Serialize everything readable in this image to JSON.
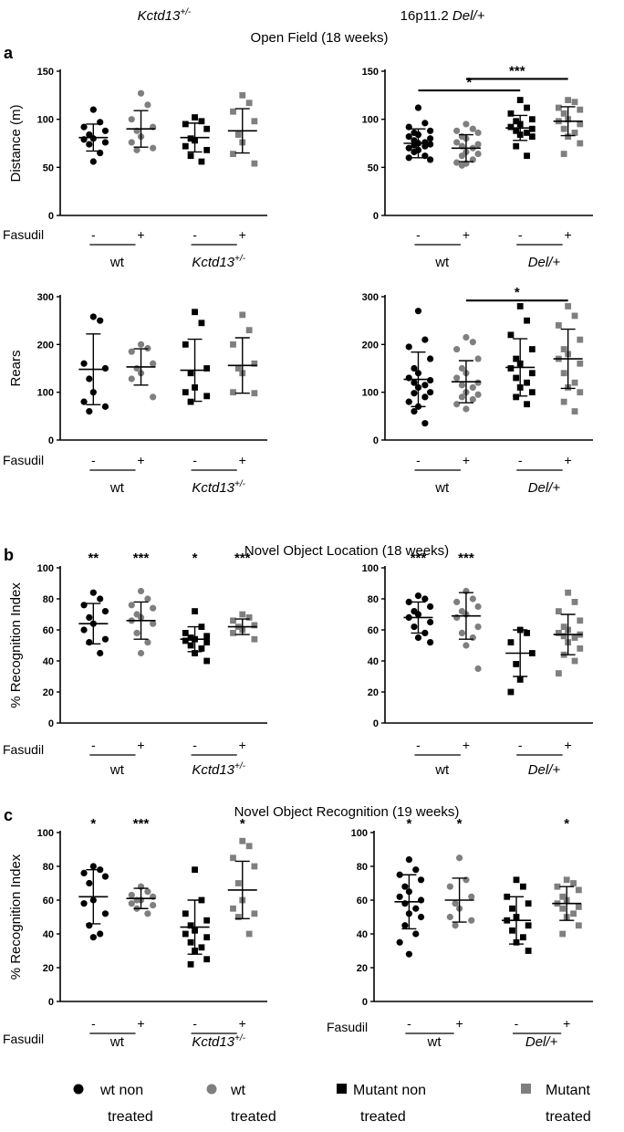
{
  "header": {
    "left_genotype": "Kctd13",
    "left_genotype_sup": "+/-",
    "right_prefix": "16p11.2",
    "right_genotype": "Del/+"
  },
  "colors": {
    "non_treated": "#000000",
    "treated": "#7f7f7f"
  },
  "legend": [
    {
      "marker": "circle",
      "color": "#000000",
      "line1": "wt non",
      "line2": "treated"
    },
    {
      "marker": "circle",
      "color": "#7f7f7f",
      "line1": "wt",
      "line2": "treated"
    },
    {
      "marker": "square",
      "color": "#000000",
      "line1": "Mutant non",
      "line2": "treated"
    },
    {
      "marker": "square",
      "color": "#7f7f7f",
      "line1": "Mutant",
      "line2": "treated"
    }
  ],
  "chart_data": [
    {
      "type": "scatter",
      "section": "a",
      "title": "Open Field (18 weeks)",
      "ylabel": "Distance (m)",
      "ylim": [
        0,
        150
      ],
      "yticks": [
        0,
        50,
        100,
        150
      ],
      "treatment_label": "Fasudil",
      "groups": [
        {
          "label": "wt",
          "italic": false
        },
        {
          "label": "Kctd13",
          "sup": "+/-",
          "italic": true
        }
      ],
      "signs": [
        "-",
        "+",
        "-",
        "+"
      ],
      "brackets": [],
      "series": [
        {
          "name": "wt non treated",
          "values": [
            110,
            97,
            92,
            88,
            84,
            80,
            79,
            76,
            74,
            65,
            56
          ],
          "mean": 81,
          "sd": 14
        },
        {
          "name": "wt treated",
          "values": [
            127,
            115,
            100,
            92,
            88,
            82,
            76,
            70,
            68
          ],
          "mean": 90,
          "sd": 19
        },
        {
          "name": "Mutant non treated",
          "values": [
            102,
            98,
            95,
            90,
            80,
            78,
            72,
            68,
            62,
            56
          ],
          "mean": 81,
          "sd": 15
        },
        {
          "name": "Mutant treated",
          "values": [
            125,
            117,
            108,
            98,
            84,
            76,
            64,
            54
          ],
          "mean": 88,
          "sd": 23
        }
      ]
    },
    {
      "type": "scatter",
      "section": "a",
      "title": "",
      "ylabel": "Distance (m)",
      "ylim": [
        0,
        150
      ],
      "yticks": [
        0,
        50,
        100,
        150
      ],
      "treatment_label": "",
      "groups": [
        {
          "label": "wt",
          "italic": false
        },
        {
          "label": "Del/+",
          "italic": true
        }
      ],
      "signs": [
        "-",
        "+",
        "-",
        "+"
      ],
      "brackets": [
        {
          "from": 0,
          "to": 2,
          "value": 130,
          "label": "*"
        },
        {
          "from": 1,
          "to": 3,
          "value": 142,
          "label": "***"
        }
      ],
      "series": [
        {
          "name": "wt non treated",
          "values": [
            112,
            96,
            92,
            88,
            86,
            84,
            82,
            80,
            78,
            76,
            75,
            74,
            73,
            72,
            70,
            68,
            66,
            62,
            60,
            58
          ],
          "mean": 75,
          "sd": 15
        },
        {
          "name": "wt treated",
          "values": [
            95,
            90,
            88,
            86,
            82,
            80,
            76,
            74,
            72,
            70,
            66,
            64,
            62,
            58,
            55,
            54,
            52
          ],
          "mean": 70,
          "sd": 14
        },
        {
          "name": "Mutant non treated",
          "values": [
            120,
            112,
            106,
            100,
            98,
            95,
            92,
            90,
            88,
            86,
            84,
            82,
            72,
            62
          ],
          "mean": 91,
          "sd": 13
        },
        {
          "name": "Mutant treated",
          "values": [
            120,
            118,
            112,
            110,
            106,
            100,
            98,
            95,
            90,
            86,
            82,
            75,
            64
          ],
          "mean": 98,
          "sd": 15
        }
      ]
    },
    {
      "type": "scatter",
      "section": "a",
      "title": "",
      "ylabel": "Rears",
      "ylim": [
        0,
        300
      ],
      "yticks": [
        0,
        100,
        200,
        300
      ],
      "treatment_label": "Fasudil",
      "groups": [
        {
          "label": "wt",
          "italic": false
        },
        {
          "label": "Kctd13",
          "sup": "+/-",
          "italic": true
        }
      ],
      "signs": [
        "-",
        "+",
        "-",
        "+"
      ],
      "brackets": [],
      "series": [
        {
          "name": "wt non treated",
          "values": [
            258,
            250,
            160,
            150,
            128,
            100,
            80,
            70,
            60
          ],
          "mean": 148,
          "sd": 74
        },
        {
          "name": "wt treated",
          "values": [
            200,
            192,
            185,
            160,
            150,
            140,
            128,
            90
          ],
          "mean": 153,
          "sd": 38
        },
        {
          "name": "Mutant non treated",
          "values": [
            268,
            245,
            200,
            150,
            140,
            110,
            100,
            92,
            80
          ],
          "mean": 146,
          "sd": 65
        },
        {
          "name": "Mutant treated",
          "values": [
            262,
            230,
            200,
            160,
            150,
            140,
            100,
            98
          ],
          "mean": 156,
          "sd": 58
        }
      ]
    },
    {
      "type": "scatter",
      "section": "a",
      "title": "",
      "ylabel": "Rears",
      "ylim": [
        0,
        300
      ],
      "yticks": [
        0,
        100,
        200,
        300
      ],
      "treatment_label": "",
      "groups": [
        {
          "label": "wt",
          "italic": false
        },
        {
          "label": "Del/+",
          "italic": true
        }
      ],
      "signs": [
        "-",
        "+",
        "-",
        "+"
      ],
      "brackets": [
        {
          "from": 1,
          "to": 3,
          "value": 292,
          "label": "*"
        }
      ],
      "series": [
        {
          "name": "wt non treated",
          "values": [
            270,
            210,
            195,
            170,
            150,
            140,
            130,
            125,
            120,
            115,
            110,
            100,
            98,
            90,
            80,
            70,
            60,
            35
          ],
          "mean": 127,
          "sd": 57
        },
        {
          "name": "wt treated",
          "values": [
            215,
            205,
            190,
            170,
            150,
            140,
            130,
            120,
            115,
            110,
            100,
            95,
            90,
            85,
            75,
            65
          ],
          "mean": 122,
          "sd": 44
        },
        {
          "name": "Mutant non treated",
          "values": [
            280,
            250,
            220,
            190,
            170,
            160,
            150,
            140,
            130,
            120,
            110,
            100,
            90,
            75
          ],
          "mean": 152,
          "sd": 60
        },
        {
          "name": "Mutant treated",
          "values": [
            280,
            260,
            240,
            210,
            190,
            180,
            170,
            160,
            140,
            120,
            110,
            100,
            80,
            60
          ],
          "mean": 170,
          "sd": 62
        }
      ]
    },
    {
      "type": "scatter",
      "section": "b",
      "title": "Novel Object Location (18 weeks)",
      "ylabel": "% Recognition Index",
      "ylim": [
        0,
        100
      ],
      "yticks": [
        0,
        20,
        40,
        60,
        80,
        100
      ],
      "treatment_label": "Fasudil",
      "groups": [
        {
          "label": "wt",
          "italic": false
        },
        {
          "label": "Kctd13",
          "sup": "+/-",
          "italic": true
        }
      ],
      "signs": [
        "-",
        "+",
        "-",
        "+"
      ],
      "stars": [
        "**",
        "***",
        "*",
        "***"
      ],
      "brackets": [],
      "series": [
        {
          "name": "wt non treated",
          "values": [
            84,
            80,
            76,
            72,
            68,
            64,
            60,
            54,
            52,
            45
          ],
          "mean": 64,
          "sd": 13
        },
        {
          "name": "wt treated",
          "values": [
            85,
            80,
            76,
            74,
            70,
            68,
            66,
            64,
            58,
            52,
            45
          ],
          "mean": 66,
          "sd": 12
        },
        {
          "name": "Mutant non treated",
          "values": [
            72,
            62,
            58,
            56,
            55,
            54,
            53,
            52,
            50,
            48,
            45,
            40
          ],
          "mean": 54,
          "sd": 8
        },
        {
          "name": "Mutant treated",
          "values": [
            70,
            68,
            66,
            63,
            62,
            60,
            58,
            54
          ],
          "mean": 62,
          "sd": 5
        }
      ]
    },
    {
      "type": "scatter",
      "section": "b",
      "title": "",
      "ylabel": "% Recognition Index",
      "ylim": [
        0,
        100
      ],
      "yticks": [
        0,
        20,
        40,
        60,
        80,
        100
      ],
      "treatment_label": "",
      "groups": [
        {
          "label": "wt",
          "italic": false
        },
        {
          "label": "Del/+",
          "italic": true
        }
      ],
      "signs": [
        "-",
        "+",
        "-",
        "+"
      ],
      "stars": [
        "***",
        "***",
        "",
        ""
      ],
      "brackets": [],
      "series": [
        {
          "name": "wt non treated",
          "values": [
            82,
            80,
            78,
            75,
            72,
            70,
            68,
            65,
            62,
            58,
            55,
            52
          ],
          "mean": 68,
          "sd": 10
        },
        {
          "name": "wt treated",
          "values": [
            85,
            80,
            78,
            75,
            72,
            70,
            68,
            62,
            58,
            55,
            50,
            35
          ],
          "mean": 69,
          "sd": 15
        },
        {
          "name": "Mutant non treated",
          "values": [
            60,
            58,
            52,
            45,
            38,
            28,
            20
          ],
          "mean": 45,
          "sd": 15
        },
        {
          "name": "Mutant treated",
          "values": [
            84,
            78,
            72,
            66,
            62,
            60,
            58,
            57,
            56,
            55,
            52,
            48,
            44,
            40,
            32
          ],
          "mean": 57,
          "sd": 13
        }
      ]
    },
    {
      "type": "scatter",
      "section": "c",
      "title": "Novel Object Recognition (19 weeks)",
      "ylabel": "% Recognition Index",
      "ylim": [
        0,
        100
      ],
      "yticks": [
        0,
        20,
        40,
        60,
        80,
        100
      ],
      "treatment_label": "Fasudil",
      "groups": [
        {
          "label": "wt",
          "italic": false
        },
        {
          "label": "Kctd13",
          "sup": "+/-",
          "italic": true
        }
      ],
      "signs": [
        "-",
        "+",
        "-",
        "+"
      ],
      "stars": [
        "*",
        "***",
        "",
        "*"
      ],
      "brackets": [],
      "series": [
        {
          "name": "wt non treated",
          "values": [
            80,
            78,
            76,
            74,
            70,
            60,
            58,
            52,
            45,
            40,
            38
          ],
          "mean": 62,
          "sd": 16
        },
        {
          "name": "wt treated",
          "values": [
            68,
            65,
            63,
            62,
            60,
            60,
            58,
            57,
            55,
            52
          ],
          "mean": 61,
          "sd": 6
        },
        {
          "name": "Mutant non treated",
          "values": [
            78,
            60,
            52,
            48,
            45,
            42,
            40,
            38,
            35,
            32,
            30,
            25,
            22
          ],
          "mean": 44,
          "sd": 16
        },
        {
          "name": "Mutant treated",
          "values": [
            95,
            92,
            85,
            80,
            70,
            60,
            55,
            52,
            50,
            40
          ],
          "mean": 66,
          "sd": 17
        }
      ]
    },
    {
      "type": "scatter",
      "section": "c",
      "title": "",
      "ylabel": "% Recognition Index",
      "ylim": [
        0,
        100
      ],
      "yticks": [
        0,
        20,
        40,
        60,
        80,
        100
      ],
      "treatment_label": "Fasudil",
      "groups": [
        {
          "label": "wt",
          "italic": false
        },
        {
          "label": "Del/+",
          "italic": true
        }
      ],
      "signs": [
        "-",
        "+",
        "-",
        "+"
      ],
      "stars": [
        "*",
        "*",
        "",
        "*"
      ],
      "brackets": [],
      "series": [
        {
          "name": "wt non treated",
          "values": [
            84,
            78,
            75,
            72,
            68,
            65,
            62,
            60,
            58,
            55,
            52,
            50,
            45,
            40,
            35,
            28
          ],
          "mean": 59,
          "sd": 16
        },
        {
          "name": "wt treated",
          "values": [
            85,
            72,
            68,
            62,
            58,
            55,
            50,
            48,
            45
          ],
          "mean": 60,
          "sd": 13
        },
        {
          "name": "Mutant non treated",
          "values": [
            72,
            68,
            62,
            58,
            55,
            50,
            48,
            45,
            42,
            38,
            35,
            30
          ],
          "mean": 48,
          "sd": 14
        },
        {
          "name": "Mutant treated",
          "values": [
            72,
            70,
            68,
            66,
            62,
            60,
            58,
            56,
            55,
            52,
            50,
            45,
            40
          ],
          "mean": 58,
          "sd": 10
        }
      ]
    }
  ]
}
